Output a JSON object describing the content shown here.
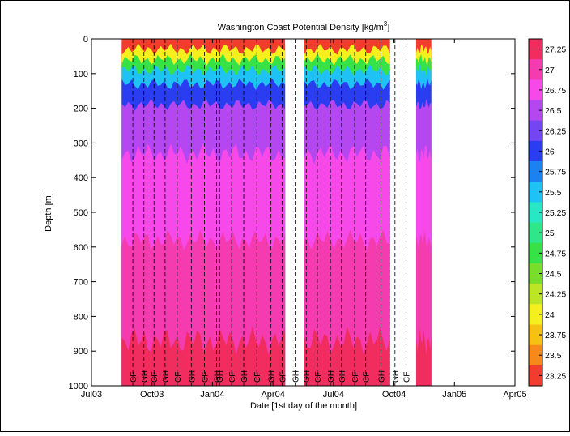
{
  "chart_data": {
    "type": "heatmap",
    "title": "Washington Coast  Potential Density [kg/m",
    "title_sup": "3",
    "title_end": "]",
    "xlabel": "Date [1st day of the month]",
    "ylabel": "Depth [m]",
    "x_ticks": [
      "Jul03",
      "Oct03",
      "Jan04",
      "Apr04",
      "Jul04",
      "Oct04",
      "Jan05",
      "Apr05"
    ],
    "x_tick_months": [
      0,
      3,
      6,
      9,
      12,
      15,
      18,
      21
    ],
    "xlim_months": [
      0,
      21
    ],
    "y_ticks": [
      0,
      100,
      200,
      300,
      400,
      500,
      600,
      700,
      800,
      900,
      1000
    ],
    "ylim": [
      0,
      1000
    ],
    "y_reversed": true,
    "data_segments_months": [
      [
        1.5,
        9.6
      ],
      [
        10.55,
        14.8
      ],
      [
        16.1,
        16.85
      ]
    ],
    "layer_boundaries": [
      {
        "level": 23.25,
        "depth_m": 12
      },
      {
        "level": 24,
        "depth_m": 30
      },
      {
        "level": 24.75,
        "depth_m": 60
      },
      {
        "level": 25.5,
        "depth_m": 90
      },
      {
        "level": 26,
        "depth_m": 130
      },
      {
        "level": 26.5,
        "depth_m": 190
      },
      {
        "level": 26.75,
        "depth_m": 330
      },
      {
        "level": 27,
        "depth_m": 580
      },
      {
        "level": 27.25,
        "depth_m": 870
      }
    ],
    "colorbar": {
      "labels": [
        "27.25",
        "27",
        "26.75",
        "26.5",
        "26.25",
        "26",
        "25.75",
        "25.5",
        "25.25",
        "25",
        "24.75",
        "24.5",
        "24.25",
        "24",
        "23.75",
        "23.5",
        "23.25"
      ],
      "colors": [
        "#f02d5e",
        "#f43bb0",
        "#f748ea",
        "#b547f1",
        "#7445f2",
        "#2b3df0",
        "#1c82f2",
        "#1ec2f5",
        "#27e7c4",
        "#2fe688",
        "#37e247",
        "#79dd2b",
        "#bce625",
        "#f4ef1d",
        "#f7c114",
        "#f6891a",
        "#f23c2d"
      ]
    },
    "cruise_labels": [
      {
        "label": "CF",
        "month": 2.05
      },
      {
        "label": "GH",
        "month": 2.6
      },
      {
        "label": "CF",
        "month": 3.1
      },
      {
        "label": "GH",
        "month": 3.65
      },
      {
        "label": "CF",
        "month": 4.25
      },
      {
        "label": "GH",
        "month": 4.95
      },
      {
        "label": "CF",
        "month": 5.6
      },
      {
        "label": "GH",
        "month": 6.2
      },
      {
        "label": "GH",
        "month": 6.35
      },
      {
        "label": "CF",
        "month": 6.95
      },
      {
        "label": "GH",
        "month": 7.55
      },
      {
        "label": "CF",
        "month": 8.2
      },
      {
        "label": "GH",
        "month": 8.9
      },
      {
        "label": "CF",
        "month": 9.45
      },
      {
        "label": "GH",
        "month": 10.1
      },
      {
        "label": "GH",
        "month": 10.65
      },
      {
        "label": "CF",
        "month": 11.2
      },
      {
        "label": "GH",
        "month": 11.85
      },
      {
        "label": "GH",
        "month": 12.4
      },
      {
        "label": "CF",
        "month": 13.05
      },
      {
        "label": "CF",
        "month": 13.6
      },
      {
        "label": "GH",
        "month": 14.35
      },
      {
        "label": "GH",
        "month": 15.05
      },
      {
        "label": "CF",
        "month": 15.6
      }
    ]
  }
}
